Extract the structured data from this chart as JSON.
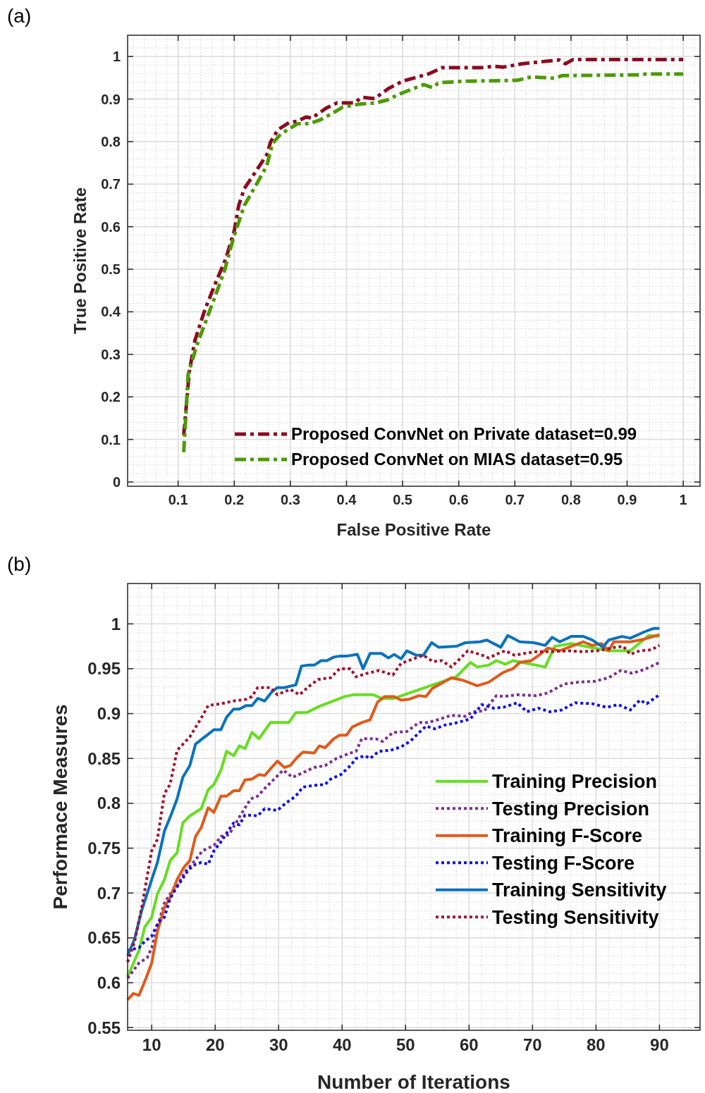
{
  "chart_data": [
    {
      "type": "line",
      "title": "(a)",
      "xlabel": "False Positive Rate",
      "ylabel": "True Positive Rate",
      "xlim": [
        0.01,
        1.03
      ],
      "ylim": [
        -0.01,
        1.05
      ],
      "xticks": [
        0.1,
        0.2,
        0.3,
        0.4,
        0.5,
        0.6,
        0.7,
        0.8,
        0.9,
        1
      ],
      "yticks": [
        0,
        0.1,
        0.2,
        0.3,
        0.4,
        0.5,
        0.6,
        0.7,
        0.8,
        0.9,
        1
      ],
      "grid": true,
      "legend": "bottom right",
      "series": [
        {
          "name": "Proposed ConvNet on Private dataset=0.99",
          "color": "#8c0a22",
          "line_style": "dashed",
          "x": [
            0.11,
            0.12,
            0.13,
            0.148,
            0.168,
            0.185,
            0.2,
            0.208,
            0.218,
            0.235,
            0.258,
            0.265,
            0.278,
            0.298,
            0.313,
            0.328,
            0.338,
            0.363,
            0.383,
            0.413,
            0.428,
            0.45,
            0.475,
            0.5,
            0.546,
            0.571,
            0.641,
            0.663,
            0.679,
            0.713,
            0.779,
            0.79,
            0.804,
            0.879,
            1.0
          ],
          "values": [
            0.11,
            0.26,
            0.333,
            0.406,
            0.472,
            0.525,
            0.59,
            0.65,
            0.69,
            0.723,
            0.769,
            0.8,
            0.828,
            0.845,
            0.848,
            0.858,
            0.855,
            0.878,
            0.891,
            0.891,
            0.904,
            0.901,
            0.925,
            0.942,
            0.959,
            0.974,
            0.974,
            0.977,
            0.975,
            0.983,
            0.992,
            0.983,
            0.993,
            0.993,
            0.993
          ]
        },
        {
          "name": "Proposed ConvNet on MIAS dataset=0.95",
          "color": "#4c9a00",
          "line_style": "dashed",
          "x": [
            0.11,
            0.118,
            0.133,
            0.163,
            0.183,
            0.198,
            0.218,
            0.238,
            0.258,
            0.268,
            0.283,
            0.313,
            0.333,
            0.353,
            0.373,
            0.393,
            0.423,
            0.453,
            0.473,
            0.493,
            0.518,
            0.538,
            0.553,
            0.563,
            0.571,
            0.613,
            0.704,
            0.729,
            0.771,
            0.784,
            0.921,
            0.934,
            1.0
          ],
          "values": [
            0.07,
            0.254,
            0.32,
            0.426,
            0.498,
            0.571,
            0.65,
            0.696,
            0.743,
            0.795,
            0.818,
            0.842,
            0.842,
            0.851,
            0.865,
            0.881,
            0.888,
            0.891,
            0.898,
            0.911,
            0.924,
            0.934,
            0.927,
            0.937,
            0.939,
            0.942,
            0.944,
            0.952,
            0.949,
            0.955,
            0.957,
            0.959,
            0.959
          ]
        }
      ]
    },
    {
      "type": "line",
      "title": "(b)",
      "xlabel": "Number of Iterations",
      "ylabel": "Performace Measures",
      "xlim": [
        6.2,
        96.4
      ],
      "ylim": [
        0.547,
        1.045
      ],
      "xticks": [
        10,
        20,
        30,
        40,
        50,
        60,
        70,
        80,
        90
      ],
      "yticks": [
        0.55,
        0.6,
        0.65,
        0.7,
        0.75,
        0.8,
        0.85,
        0.9,
        0.95,
        1
      ],
      "grid": true,
      "legend": "right",
      "series": [
        {
          "name": "Training Precision",
          "color": "#66dd22",
          "line_style": "solid",
          "x": [
            6.2,
            8,
            8.9,
            10,
            10.9,
            12,
            12.9,
            14,
            14.9,
            16,
            17.8,
            18.9,
            19.8,
            20.9,
            21.8,
            22.9,
            23.8,
            24.7,
            25.8,
            26.9,
            28.7,
            31.6,
            32.7,
            34.4,
            36.4,
            38.2,
            40.4,
            41.8,
            44.9,
            46.2,
            48.2,
            58.0,
            60.2,
            61.3,
            63.1,
            64.3,
            65.7,
            66.9,
            72.0,
            73.5,
            76.1,
            82.0,
            85.4,
            88.3,
            90
          ],
          "values": [
            0.607,
            0.636,
            0.662,
            0.673,
            0.699,
            0.715,
            0.736,
            0.745,
            0.778,
            0.786,
            0.794,
            0.815,
            0.821,
            0.837,
            0.858,
            0.853,
            0.864,
            0.861,
            0.879,
            0.872,
            0.89,
            0.89,
            0.901,
            0.901,
            0.908,
            0.913,
            0.919,
            0.921,
            0.921,
            0.917,
            0.917,
            0.941,
            0.957,
            0.952,
            0.954,
            0.959,
            0.955,
            0.959,
            0.952,
            0.975,
            0.978,
            0.97,
            0.97,
            0.987,
            0.986
          ]
        },
        {
          "name": "Testing Precision",
          "color": "#7e2f8e",
          "line_style": "dotted",
          "x": [
            6.2,
            8,
            9.3,
            10,
            10.9,
            12,
            12.9,
            14,
            15.3,
            16.9,
            18,
            19.8,
            20.9,
            22.2,
            23.1,
            24,
            25.6,
            26.7,
            28,
            29.3,
            30.7,
            32.2,
            33.8,
            35.6,
            37.3,
            39.1,
            41.3,
            42.2,
            43.1,
            45.3,
            46.4,
            48,
            50.2,
            52.1,
            53.5,
            55,
            57.2,
            59.4,
            60.6,
            62.4,
            64.3,
            65.4,
            67.6,
            70.6,
            72.4,
            75,
            77.2,
            79.8,
            82,
            83.9,
            85.7,
            87.6,
            90
          ],
          "values": [
            0.605,
            0.622,
            0.628,
            0.639,
            0.662,
            0.689,
            0.699,
            0.708,
            0.724,
            0.737,
            0.747,
            0.753,
            0.763,
            0.765,
            0.776,
            0.787,
            0.805,
            0.808,
            0.818,
            0.827,
            0.837,
            0.829,
            0.834,
            0.84,
            0.842,
            0.85,
            0.856,
            0.858,
            0.872,
            0.872,
            0.869,
            0.879,
            0.88,
            0.89,
            0.89,
            0.893,
            0.898,
            0.897,
            0.902,
            0.903,
            0.92,
            0.919,
            0.921,
            0.92,
            0.923,
            0.933,
            0.935,
            0.936,
            0.94,
            0.948,
            0.945,
            0.949,
            0.957
          ]
        },
        {
          "name": "Training F-Score",
          "color": "#e05a1a",
          "line_style": "solid",
          "x": [
            6.2,
            7.1,
            8,
            9.1,
            10,
            10.9,
            12,
            12.9,
            14,
            15.1,
            16,
            16.9,
            17.8,
            18.9,
            19.8,
            20.9,
            21.8,
            22.9,
            23.8,
            24.7,
            25.8,
            26.9,
            27.8,
            28.9,
            29.8,
            30.9,
            31.8,
            32.9,
            33.8,
            35.6,
            36.4,
            37.3,
            38.7,
            39.6,
            40.7,
            41.6,
            43.1,
            44.4,
            45.6,
            46.7,
            48.2,
            49.3,
            50.6,
            52.1,
            53.2,
            54.2,
            57.2,
            59.1,
            61.3,
            63.1,
            65.4,
            66.9,
            68,
            69.8,
            71,
            72.4,
            74.3,
            78,
            79.4,
            80.9,
            82,
            82.8,
            85.4,
            87.6,
            90
          ],
          "values": [
            0.581,
            0.588,
            0.586,
            0.605,
            0.622,
            0.657,
            0.684,
            0.695,
            0.715,
            0.729,
            0.736,
            0.763,
            0.773,
            0.795,
            0.79,
            0.808,
            0.808,
            0.814,
            0.814,
            0.826,
            0.827,
            0.832,
            0.831,
            0.84,
            0.847,
            0.84,
            0.842,
            0.851,
            0.857,
            0.856,
            0.864,
            0.862,
            0.872,
            0.876,
            0.876,
            0.885,
            0.89,
            0.893,
            0.913,
            0.919,
            0.919,
            0.915,
            0.916,
            0.92,
            0.919,
            0.928,
            0.94,
            0.937,
            0.931,
            0.935,
            0.946,
            0.95,
            0.957,
            0.959,
            0.965,
            0.973,
            0.97,
            0.98,
            0.976,
            0.978,
            0.97,
            0.98,
            0.98,
            0.983,
            0.988
          ]
        },
        {
          "name": "Testing F-Score",
          "color": "#1010e8",
          "line_style": "dotted",
          "x": [
            6.2,
            8,
            8.9,
            10,
            11.1,
            12,
            12.9,
            14,
            15.8,
            16.9,
            17.8,
            18.9,
            19.8,
            20.9,
            22.2,
            22.9,
            23.8,
            24.7,
            26.7,
            27.8,
            29.8,
            31.1,
            32.7,
            33.8,
            35.6,
            37.3,
            38.2,
            39.8,
            41.3,
            42.2,
            43.6,
            44.4,
            45.8,
            47.6,
            49.3,
            50.7,
            53.2,
            54.6,
            56.1,
            57.6,
            60.2,
            62,
            63.9,
            65.4,
            67.6,
            69.1,
            70.9,
            72.8,
            74.6,
            76.7,
            79.4,
            81.7,
            83.5,
            85.4,
            86.9,
            88,
            89.8
          ],
          "values": [
            0.636,
            0.639,
            0.646,
            0.652,
            0.668,
            0.673,
            0.694,
            0.707,
            0.726,
            0.732,
            0.734,
            0.732,
            0.747,
            0.757,
            0.771,
            0.778,
            0.776,
            0.787,
            0.786,
            0.794,
            0.792,
            0.8,
            0.808,
            0.818,
            0.82,
            0.821,
            0.827,
            0.832,
            0.842,
            0.85,
            0.853,
            0.85,
            0.858,
            0.859,
            0.863,
            0.869,
            0.886,
            0.883,
            0.887,
            0.889,
            0.894,
            0.91,
            0.906,
            0.907,
            0.912,
            0.902,
            0.906,
            0.902,
            0.904,
            0.912,
            0.911,
            0.907,
            0.91,
            0.904,
            0.915,
            0.911,
            0.92
          ]
        },
        {
          "name": "Training Sensitivity",
          "color": "#0a72bd",
          "line_style": "solid",
          "x": [
            6.2,
            7.3,
            8.4,
            10,
            10.9,
            12,
            13.1,
            14,
            14.9,
            16,
            16.9,
            18.9,
            19.8,
            20.9,
            21.8,
            22.9,
            23.8,
            24.9,
            25.8,
            26.7,
            27.8,
            28.9,
            29.8,
            30.9,
            32.7,
            33.6,
            34.7,
            35.6,
            36.7,
            37.6,
            38.7,
            39.6,
            40.7,
            42.4,
            43.3,
            44.4,
            46.2,
            47.3,
            48.2,
            49.3,
            50.2,
            51.7,
            52.8,
            54.1,
            55.2,
            58,
            59.4,
            61.7,
            62.8,
            65,
            66.1,
            68,
            70.2,
            72,
            73.1,
            74.3,
            76.1,
            78,
            79.4,
            81.1,
            82,
            84.1,
            85.4,
            87.6,
            89.1,
            90
          ],
          "values": [
            0.63,
            0.649,
            0.68,
            0.715,
            0.734,
            0.769,
            0.788,
            0.805,
            0.829,
            0.842,
            0.866,
            0.877,
            0.882,
            0.882,
            0.896,
            0.905,
            0.905,
            0.909,
            0.909,
            0.917,
            0.914,
            0.924,
            0.929,
            0.929,
            0.932,
            0.953,
            0.954,
            0.954,
            0.959,
            0.959,
            0.963,
            0.964,
            0.964,
            0.966,
            0.95,
            0.967,
            0.967,
            0.962,
            0.966,
            0.961,
            0.97,
            0.965,
            0.965,
            0.979,
            0.974,
            0.975,
            0.979,
            0.98,
            0.982,
            0.974,
            0.987,
            0.98,
            0.979,
            0.976,
            0.985,
            0.98,
            0.986,
            0.986,
            0.982,
            0.974,
            0.982,
            0.986,
            0.984,
            0.991,
            0.995,
            0.995
          ]
        },
        {
          "name": "Testing Sensitivity",
          "color": "#a0142e",
          "line_style": "dotted",
          "x": [
            6.2,
            7.3,
            8.4,
            10,
            10.9,
            12,
            12.9,
            14,
            16,
            17.8,
            18.9,
            20.9,
            22.9,
            24.9,
            25.8,
            26.7,
            28.7,
            29.8,
            31.8,
            33.3,
            34.7,
            36.2,
            38.2,
            39.6,
            41.3,
            42.2,
            44,
            45.8,
            48,
            49.3,
            51.6,
            52.8,
            54.3,
            55.7,
            57.2,
            58.7,
            59.8,
            61.7,
            63.1,
            64.6,
            65.7,
            67.2,
            68.7,
            70.6,
            72.8,
            75.7,
            78,
            80.2,
            83.1,
            84.3,
            85.4,
            86.9,
            88.7,
            90
          ],
          "values": [
            0.623,
            0.646,
            0.683,
            0.747,
            0.76,
            0.811,
            0.821,
            0.859,
            0.874,
            0.895,
            0.909,
            0.911,
            0.914,
            0.916,
            0.919,
            0.929,
            0.929,
            0.921,
            0.927,
            0.921,
            0.93,
            0.938,
            0.94,
            0.95,
            0.95,
            0.941,
            0.945,
            0.948,
            0.943,
            0.956,
            0.962,
            0.965,
            0.958,
            0.959,
            0.952,
            0.962,
            0.97,
            0.966,
            0.962,
            0.967,
            0.97,
            0.965,
            0.967,
            0.969,
            0.969,
            0.97,
            0.969,
            0.97,
            0.974,
            0.975,
            0.966,
            0.97,
            0.971,
            0.976
          ]
        }
      ]
    }
  ]
}
